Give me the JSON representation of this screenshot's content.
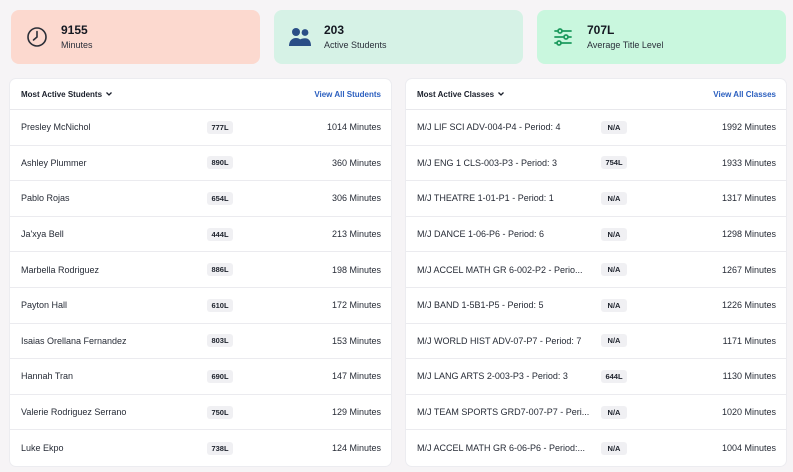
{
  "stats": [
    {
      "value": "9155",
      "label": "Minutes",
      "icon": "clock-icon",
      "bg": "#fcd9cf"
    },
    {
      "value": "203",
      "label": "Active Students",
      "icon": "students-icon",
      "bg": "#d6f2e6"
    },
    {
      "value": "707L",
      "label": "Average Title Level",
      "icon": "sliders-icon",
      "bg": "#c9f7de"
    }
  ],
  "students_panel": {
    "title": "Most Active Students",
    "link": "View All Students",
    "rows": [
      {
        "name": "Presley McNichol",
        "level": "777L",
        "minutes": "1014 Minutes"
      },
      {
        "name": "Ashley Plummer",
        "level": "890L",
        "minutes": "360 Minutes"
      },
      {
        "name": "Pablo Rojas",
        "level": "654L",
        "minutes": "306 Minutes"
      },
      {
        "name": "Ja'xya Bell",
        "level": "444L",
        "minutes": "213 Minutes"
      },
      {
        "name": "Marbella Rodriguez",
        "level": "886L",
        "minutes": "198 Minutes"
      },
      {
        "name": "Payton Hall",
        "level": "610L",
        "minutes": "172 Minutes"
      },
      {
        "name": "Isaias Orellana Fernandez",
        "level": "803L",
        "minutes": "153 Minutes"
      },
      {
        "name": "Hannah Tran",
        "level": "690L",
        "minutes": "147 Minutes"
      },
      {
        "name": "Valerie Rodriguez Serrano",
        "level": "750L",
        "minutes": "129 Minutes"
      },
      {
        "name": "Luke Ekpo",
        "level": "738L",
        "minutes": "124 Minutes"
      }
    ]
  },
  "classes_panel": {
    "title": "Most Active Classes",
    "link": "View All Classes",
    "rows": [
      {
        "name": "M/J LIF SCI ADV-004-P4 - Period: 4",
        "level": "N/A",
        "minutes": "1992 Minutes"
      },
      {
        "name": "M/J ENG 1 CLS-003-P3 - Period: 3",
        "level": "754L",
        "minutes": "1933 Minutes"
      },
      {
        "name": "M/J THEATRE 1-01-P1 - Period: 1",
        "level": "N/A",
        "minutes": "1317 Minutes"
      },
      {
        "name": "M/J DANCE 1-06-P6 - Period: 6",
        "level": "N/A",
        "minutes": "1298 Minutes"
      },
      {
        "name": "M/J ACCEL MATH GR 6-002-P2 - Perio...",
        "level": "N/A",
        "minutes": "1267 Minutes"
      },
      {
        "name": "M/J BAND 1-5B1-P5 - Period: 5",
        "level": "N/A",
        "minutes": "1226 Minutes"
      },
      {
        "name": "M/J WORLD HIST ADV-07-P7 - Period: 7",
        "level": "N/A",
        "minutes": "1171 Minutes"
      },
      {
        "name": "M/J LANG ARTS 2-003-P3 - Period: 3",
        "level": "644L",
        "minutes": "1130 Minutes"
      },
      {
        "name": "M/J TEAM SPORTS GRD7-007-P7 - Peri...",
        "level": "N/A",
        "minutes": "1020 Minutes"
      },
      {
        "name": "M/J ACCEL MATH GR 6-06-P6 - Period:...",
        "level": "N/A",
        "minutes": "1004 Minutes"
      }
    ]
  }
}
